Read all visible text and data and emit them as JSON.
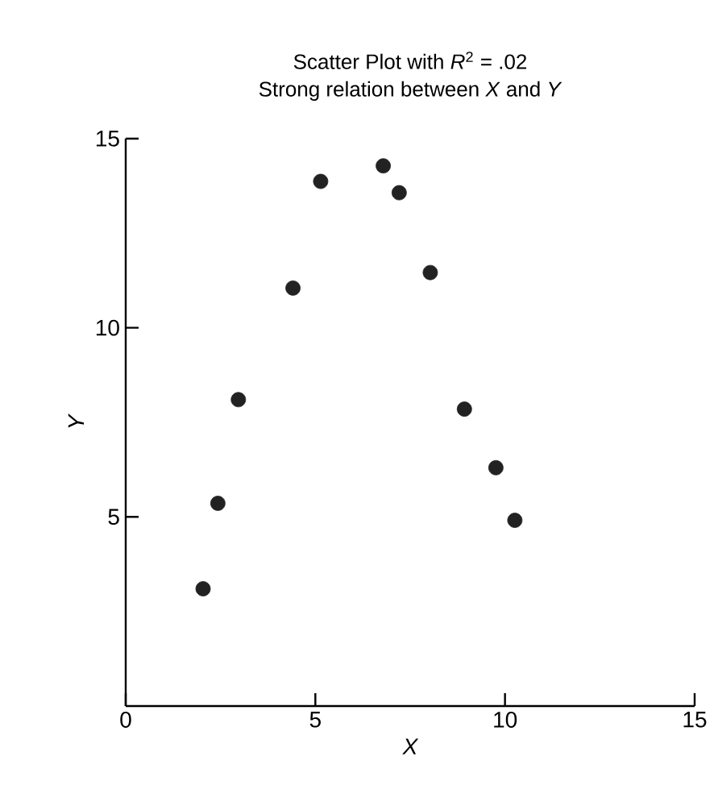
{
  "chart_data": {
    "type": "scatter",
    "title": "Scatter Plot with *R*$^{2}$ = .02",
    "subtitle": "Strong relation between *X* and *Y*",
    "xlabel": "X",
    "ylabel": "Y",
    "x": [
      2.04,
      2.43,
      2.97,
      4.41,
      5.14,
      6.79,
      7.21,
      8.03,
      8.93,
      9.76,
      10.26
    ],
    "values": [
      3.1,
      5.36,
      8.1,
      11.05,
      13.87,
      14.28,
      13.57,
      11.46,
      7.85,
      6.3,
      4.91
    ],
    "color": "#222222",
    "marker": "circle",
    "xlim": [
      0,
      15
    ],
    "ylim": [
      0,
      15
    ],
    "xticks": [
      0,
      5,
      10,
      15
    ],
    "yticks": [
      5,
      10,
      15
    ],
    "grid": false
  }
}
